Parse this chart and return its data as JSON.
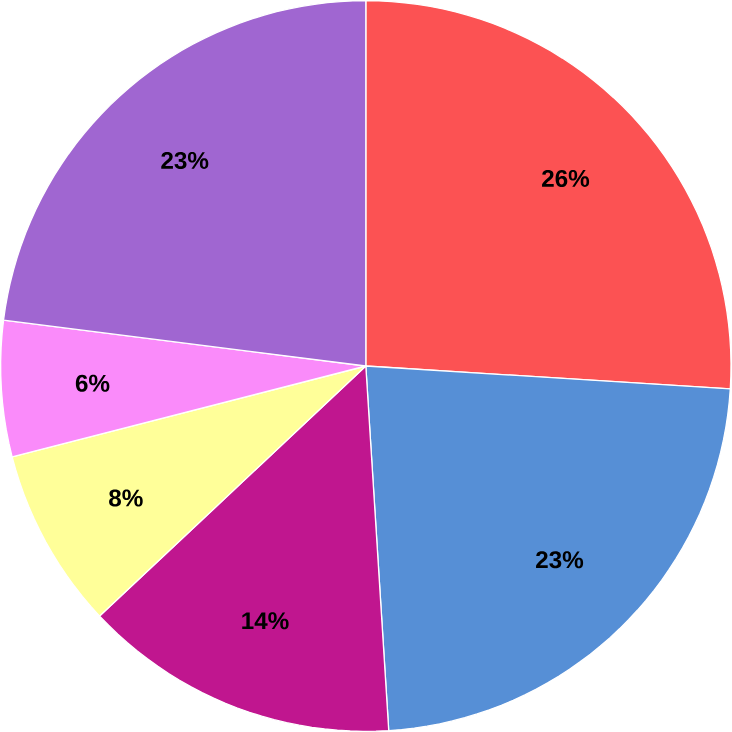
{
  "chart_data": {
    "type": "pie",
    "categories": [
      null,
      null,
      null,
      null,
      null,
      null
    ],
    "values": [
      26,
      23,
      14,
      8,
      6,
      23
    ],
    "colors": [
      "#fc5253",
      "#568fd6",
      "#c0168f",
      "#ffff99",
      "#fa8bfa",
      "#a066d1"
    ],
    "value_labels": [
      "26%",
      "23%",
      "14%",
      "8%",
      "6%",
      "23%"
    ]
  }
}
